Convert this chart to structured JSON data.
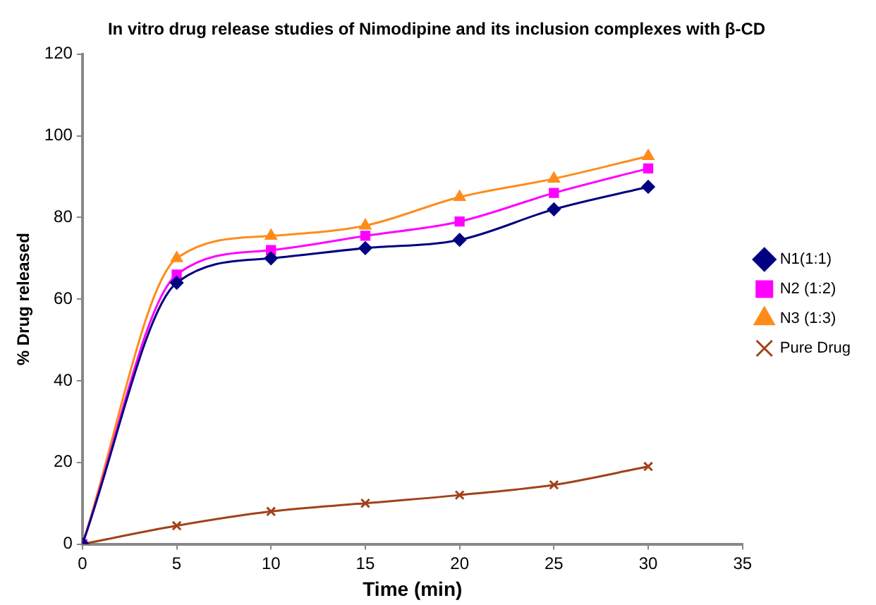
{
  "chart_data": {
    "type": "line",
    "title": "In vitro drug release studies of Nimodipine and its inclusion complexes with β-CD",
    "xlabel": "Time (min)",
    "ylabel": "% Drug released",
    "x": [
      0,
      5,
      10,
      15,
      20,
      25,
      30
    ],
    "xlim": [
      0,
      35
    ],
    "xticks": [
      0,
      5,
      10,
      15,
      20,
      25,
      30,
      35
    ],
    "ylim": [
      0,
      120
    ],
    "yticks": [
      0,
      20,
      40,
      60,
      80,
      100,
      120
    ],
    "grid": false,
    "legend": "right",
    "series": [
      {
        "name": "N1(1:1)",
        "color": "#000080",
        "marker": "diamond",
        "values": [
          0,
          64,
          70,
          72.5,
          74.5,
          82,
          87.5
        ]
      },
      {
        "name": "N2 (1:2)",
        "color": "#ff00ff",
        "marker": "square",
        "values": [
          0,
          66,
          72,
          75.5,
          79,
          86,
          92
        ]
      },
      {
        "name": "N3 (1:3)",
        "color": "#ff8c1a",
        "marker": "triangle",
        "values": [
          0,
          70,
          75.5,
          78,
          85,
          89.5,
          95
        ]
      },
      {
        "name": "Pure Drug",
        "color": "#a0421a",
        "marker": "cross",
        "values": [
          0,
          4.5,
          8,
          10,
          12,
          14.5,
          19
        ]
      }
    ]
  }
}
